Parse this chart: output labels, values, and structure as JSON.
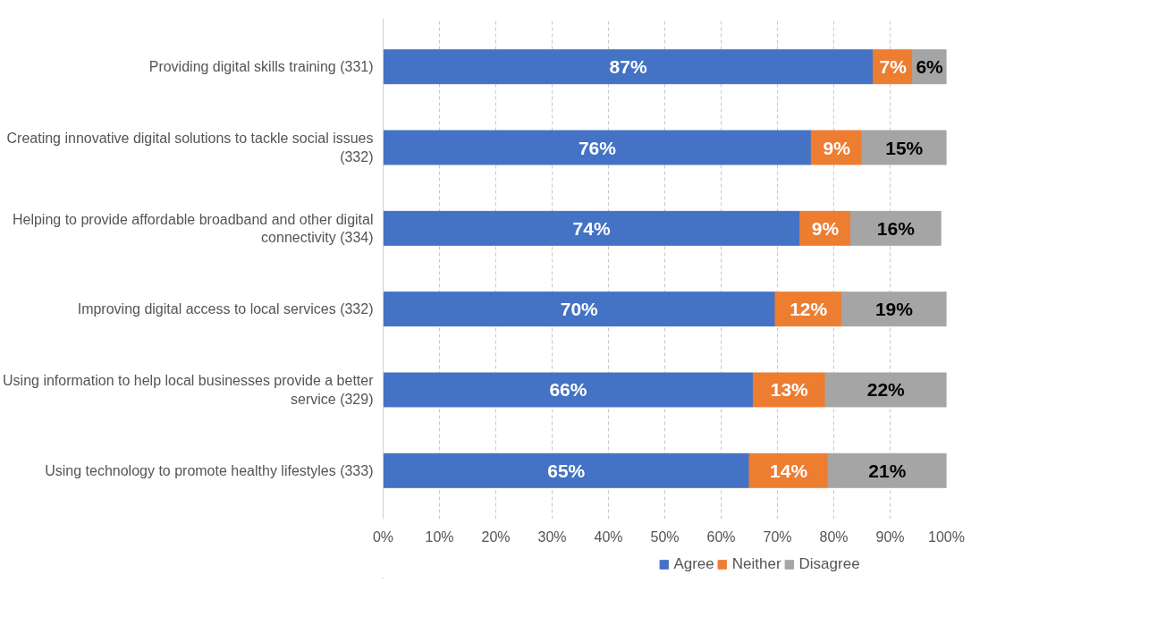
{
  "chart_data": {
    "type": "bar",
    "orientation": "horizontal",
    "stacked": true,
    "categories": [
      "Providing digital skills training (331)",
      "Creating innovative digital solutions to tackle social issues (332)",
      "Helping to provide affordable broadband and other digital connectivity (334)",
      "Improving digital access to local services (332)",
      "Using information to help local businesses provide a better service (329)",
      "Using technology to promote healthy lifestyles (333)"
    ],
    "series": [
      {
        "name": "Agree",
        "color": "#4472c4",
        "values": [
          87,
          76,
          74,
          69.6,
          65.7,
          65
        ],
        "value_labels": [
          "87%",
          "76%",
          "74%",
          "70%",
          "66%",
          "65%"
        ]
      },
      {
        "name": "Neither",
        "color": "#ed7d31",
        "values": [
          7,
          9,
          9,
          11.8,
          12.8,
          14
        ],
        "value_labels": [
          "7%",
          "9%",
          "9%",
          "12%",
          "13%",
          "14%"
        ]
      },
      {
        "name": "Disagree",
        "color": "#a5a5a5",
        "values": [
          6,
          15,
          16,
          18.6,
          21.5,
          21
        ],
        "value_labels": [
          "6%",
          "15%",
          "16%",
          "19%",
          "22%",
          "21%"
        ]
      }
    ],
    "xlim": [
      0,
      100
    ],
    "xticks": [
      {
        "value": 0,
        "label": "0%"
      },
      {
        "value": 10,
        "label": "10%"
      },
      {
        "value": 20,
        "label": "20%"
      },
      {
        "value": 30,
        "label": "30%"
      },
      {
        "value": 40,
        "label": "40%"
      },
      {
        "value": 50,
        "label": "50%"
      },
      {
        "value": 60,
        "label": "60%"
      },
      {
        "value": 70,
        "label": "70%"
      },
      {
        "value": 80,
        "label": "80%"
      },
      {
        "value": 90,
        "label": "90%"
      },
      {
        "value": 100,
        "label": "100%"
      }
    ],
    "grid": "x",
    "legend": "bottom"
  }
}
